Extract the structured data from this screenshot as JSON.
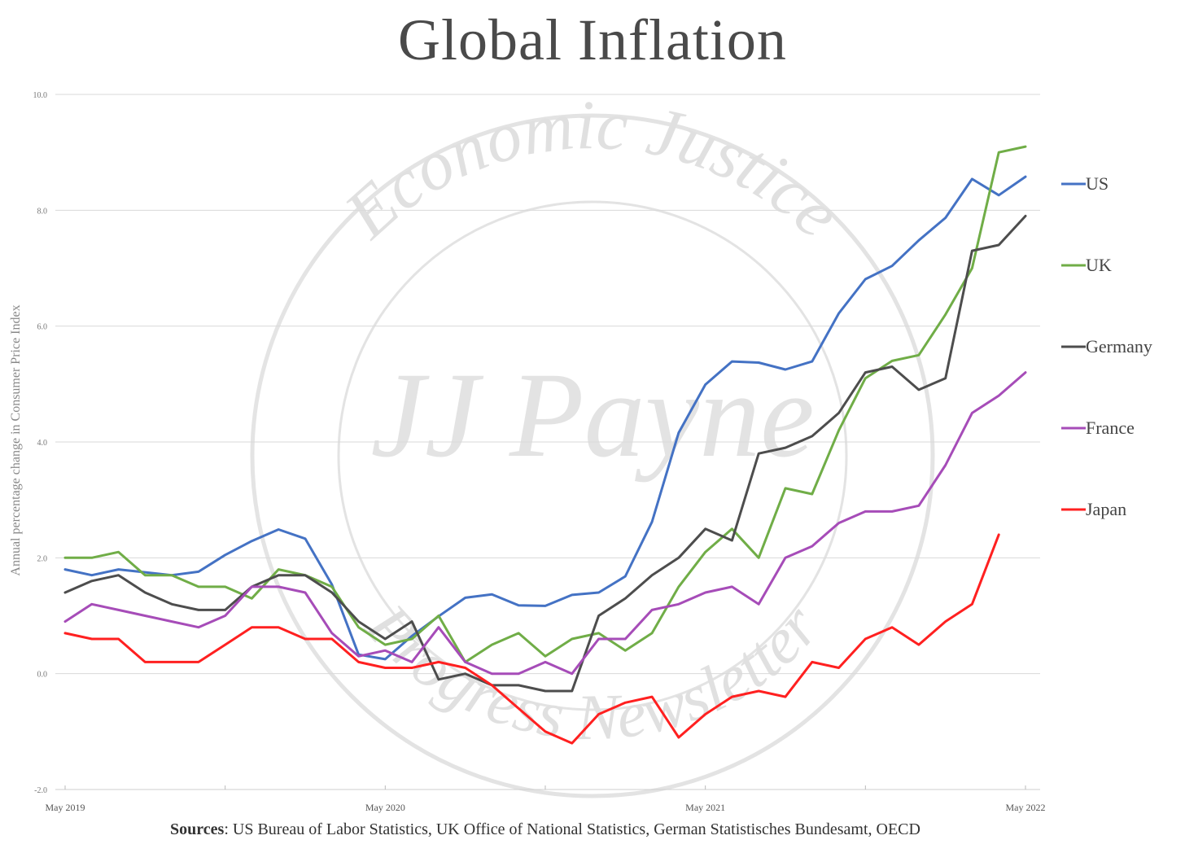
{
  "title": "Global Inflation",
  "sources": {
    "label": "Sources",
    "text": ": US Bureau of  Labor Statistics, UK Office of  National Statistics, German Statistisches Bundesamt, OECD"
  },
  "watermark": {
    "arc_top": "Economic Justice",
    "arc_bottom": "Progress Newsletter",
    "signature": "JJ Payne"
  },
  "chart_data": {
    "type": "line",
    "title": "Global Inflation",
    "xlabel": "",
    "ylabel": "Annual percentage change in Consumer Price Index",
    "ylim": [
      -2.0,
      10.0
    ],
    "yticks": [
      "-2.0",
      "0.0",
      "2.0",
      "4.0",
      "6.0",
      "8.0",
      "10.0"
    ],
    "x_tick_labels": [
      "May 2019",
      "May 2020",
      "May 2021",
      "May 2022"
    ],
    "x": [
      "2019-05",
      "2019-06",
      "2019-07",
      "2019-08",
      "2019-09",
      "2019-10",
      "2019-11",
      "2019-12",
      "2020-01",
      "2020-02",
      "2020-03",
      "2020-04",
      "2020-05",
      "2020-06",
      "2020-07",
      "2020-08",
      "2020-09",
      "2020-10",
      "2020-11",
      "2020-12",
      "2021-01",
      "2021-02",
      "2021-03",
      "2021-04",
      "2021-05",
      "2021-06",
      "2021-07",
      "2021-08",
      "2021-09",
      "2021-10",
      "2021-11",
      "2021-12",
      "2022-01",
      "2022-02",
      "2022-03",
      "2022-04",
      "2022-05"
    ],
    "grid": "horizontal",
    "legend_position": "right",
    "series": [
      {
        "name": "US",
        "color": "#4472C4",
        "values": [
          1.8,
          1.7,
          1.8,
          1.75,
          1.7,
          1.76,
          2.05,
          2.29,
          2.49,
          2.33,
          1.54,
          0.33,
          0.25,
          0.65,
          0.99,
          1.31,
          1.37,
          1.18,
          1.17,
          1.36,
          1.4,
          1.68,
          2.62,
          4.16,
          4.99,
          5.39,
          5.37,
          5.25,
          5.39,
          6.22,
          6.81,
          7.04,
          7.48,
          7.87,
          8.54,
          8.26,
          8.58
        ]
      },
      {
        "name": "UK",
        "color": "#70AD47",
        "values": [
          2.0,
          2.0,
          2.1,
          1.7,
          1.7,
          1.5,
          1.5,
          1.3,
          1.8,
          1.7,
          1.5,
          0.8,
          0.5,
          0.6,
          1.0,
          0.2,
          0.5,
          0.7,
          0.3,
          0.6,
          0.7,
          0.4,
          0.7,
          1.5,
          2.1,
          2.5,
          2.0,
          3.2,
          3.1,
          4.2,
          5.1,
          5.4,
          5.5,
          6.2,
          7.0,
          9.0,
          9.1
        ]
      },
      {
        "name": "Germany",
        "color": "#4D4D4D",
        "values": [
          1.4,
          1.6,
          1.7,
          1.4,
          1.2,
          1.1,
          1.1,
          1.5,
          1.7,
          1.7,
          1.4,
          0.9,
          0.6,
          0.9,
          -0.1,
          0.0,
          -0.2,
          -0.2,
          -0.3,
          -0.3,
          1.0,
          1.3,
          1.7,
          2.0,
          2.5,
          2.3,
          3.8,
          3.9,
          4.1,
          4.5,
          5.2,
          5.3,
          4.9,
          5.1,
          7.3,
          7.4,
          7.9
        ]
      },
      {
        "name": "France",
        "color": "#A64CB8",
        "values": [
          0.9,
          1.2,
          1.1,
          1.0,
          0.9,
          0.8,
          1.0,
          1.5,
          1.5,
          1.4,
          0.7,
          0.3,
          0.4,
          0.2,
          0.8,
          0.2,
          0.0,
          0.0,
          0.2,
          0.0,
          0.6,
          0.6,
          1.1,
          1.2,
          1.4,
          1.5,
          1.2,
          2.0,
          2.2,
          2.6,
          2.8,
          2.8,
          2.9,
          3.6,
          4.5,
          4.8,
          5.2
        ]
      },
      {
        "name": "Japan",
        "color": "#FF2020",
        "values": [
          0.7,
          0.6,
          0.6,
          0.2,
          0.2,
          0.2,
          0.5,
          0.8,
          0.8,
          0.6,
          0.6,
          0.2,
          0.1,
          0.1,
          0.2,
          0.1,
          -0.2,
          -0.6,
          -1.0,
          -1.2,
          -0.7,
          -0.5,
          -0.4,
          -1.1,
          -0.7,
          -0.4,
          -0.3,
          -0.4,
          0.2,
          0.1,
          0.6,
          0.8,
          0.5,
          0.9,
          1.2,
          2.4,
          null
        ]
      }
    ]
  }
}
